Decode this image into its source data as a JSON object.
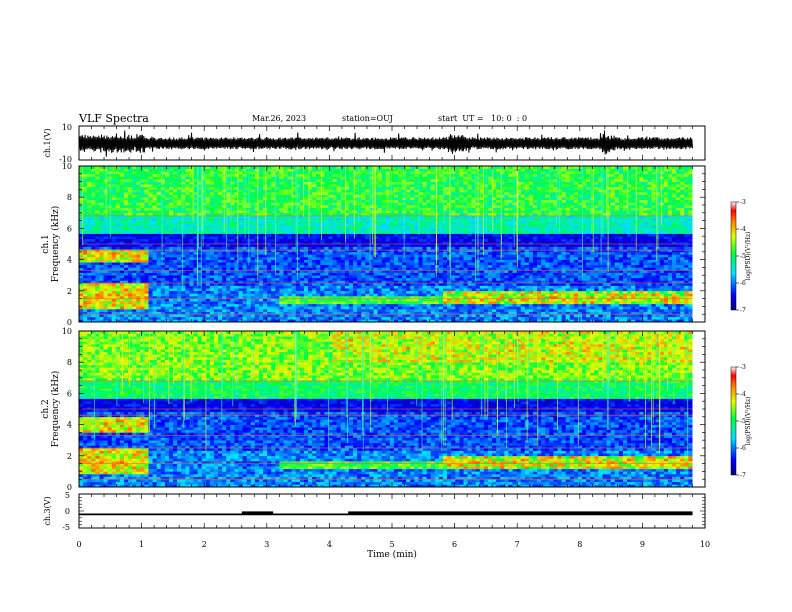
{
  "header": {
    "title": "VLF Spectra",
    "date": "Mar.26, 2023",
    "station": "station=OUJ",
    "start": "start  UT =   10: 0  : 0"
  },
  "chart_data": {
    "type": "heatmap",
    "panels": [
      {
        "name": "ch1-waveform",
        "ylabel": "ch.1(V)",
        "ylim": [
          -10,
          10
        ],
        "yticks": [
          "10",
          "-10"
        ]
      },
      {
        "name": "ch1-spectrogram",
        "ylabel": "Frequency  (kHz)",
        "channel_label": "ch.1",
        "ylim": [
          0,
          10
        ],
        "yticks": [
          "0",
          "2",
          "4",
          "6",
          "8",
          "10"
        ],
        "colorbar": {
          "label": "log(PSD)(V²/Hz)",
          "range": [
            -7,
            -3
          ],
          "ticks": [
            "-3",
            "-4",
            "-5",
            "-6",
            "-7"
          ]
        }
      },
      {
        "name": "ch2-spectrogram",
        "ylabel": "Frequency  (kHz)",
        "channel_label": "ch.2",
        "ylim": [
          0,
          10
        ],
        "yticks": [
          "0",
          "2",
          "4",
          "6",
          "8",
          "10"
        ],
        "colorbar": {
          "label": "log(PSD)(V²/Hz)",
          "range": [
            -7,
            -3
          ],
          "ticks": [
            "-3",
            "-4",
            "-5",
            "-6",
            "-7"
          ]
        }
      },
      {
        "name": "ch3-level",
        "ylabel": "ch.3(V)",
        "ylim": [
          -5,
          5
        ],
        "yticks": [
          "5",
          "0",
          "-5"
        ],
        "baseline_value": -1,
        "high_intervals_min": [
          [
            2.6,
            3.1
          ],
          [
            4.3,
            9.8
          ]
        ]
      }
    ],
    "xaxis": {
      "label": "Time  (min)",
      "range": [
        0,
        10
      ],
      "ticks": [
        "0",
        "1",
        "2",
        "3",
        "4",
        "5",
        "6",
        "7",
        "8",
        "9",
        "10"
      ]
    },
    "data_end_min": 9.8,
    "spectrogram_features": {
      "ch1_strong_bands_before_1min_khz": [
        1.3,
        2.0,
        4.3
      ],
      "ch2_strong_bands_before_1min_khz": [
        1.3,
        2.0,
        4.0
      ],
      "persistent_lines_khz": [
        0.5,
        1.5,
        2.5,
        3.3,
        4.6,
        5.0,
        6.8
      ]
    }
  }
}
